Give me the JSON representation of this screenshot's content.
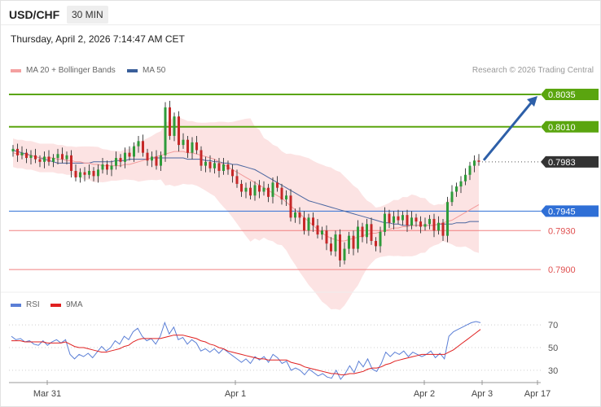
{
  "header": {
    "symbol": "USD/CHF",
    "timeframe": "30 MIN",
    "datetime": "Thursday, April 2, 2026 7:14:47 AM CET"
  },
  "legend": {
    "ma20_bb": {
      "label": "MA 20 + Bollinger Bands",
      "color": "#f4a0a0"
    },
    "ma50": {
      "label": "MA 50",
      "color": "#3a5f9a"
    },
    "credit": "Research © 2026 Trading Central"
  },
  "rsi_legend": {
    "rsi": {
      "label": "RSI",
      "color": "#5b7fd6"
    },
    "ma9": {
      "label": "9MA",
      "color": "#e02020"
    }
  },
  "chart_data": [
    {
      "type": "candlestick",
      "ylim": [
        0.7885,
        0.8045
      ],
      "price_labels": [
        {
          "value": "0.8035",
          "price": 0.8035,
          "kind": "resistance",
          "color": "#5aa50f"
        },
        {
          "value": "0.8010",
          "price": 0.801,
          "kind": "resistance",
          "color": "#5aa50f"
        },
        {
          "value": "0.7983",
          "price": 0.7983,
          "kind": "last",
          "color": "#333333"
        },
        {
          "value": "0.7945",
          "price": 0.7945,
          "kind": "pivot",
          "color": "#2f6fd6"
        },
        {
          "value": "0.7930",
          "price": 0.793,
          "kind": "support",
          "color": "#e05050"
        },
        {
          "value": "0.7900",
          "price": 0.79,
          "kind": "support",
          "color": "#e05050"
        }
      ],
      "x_ticks": [
        "Mar 31",
        "Apr 1",
        "Apr 2",
        "Apr 3",
        "Apr 17"
      ],
      "closes": [
        0.7993,
        0.7988,
        0.799,
        0.7986,
        0.7988,
        0.7985,
        0.7983,
        0.7987,
        0.7983,
        0.7986,
        0.7989,
        0.7985,
        0.7988,
        0.7976,
        0.7971,
        0.7975,
        0.7973,
        0.7976,
        0.7972,
        0.7977,
        0.7981,
        0.7977,
        0.798,
        0.7986,
        0.7983,
        0.799,
        0.7987,
        0.7995,
        0.7999,
        0.799,
        0.7984,
        0.7987,
        0.798,
        0.7988,
        0.8025,
        0.8003,
        0.8018,
        0.7996,
        0.8,
        0.799,
        0.7998,
        0.7992,
        0.798,
        0.7983,
        0.7978,
        0.7982,
        0.7976,
        0.7981,
        0.7977,
        0.7972,
        0.7966,
        0.796,
        0.7963,
        0.7957,
        0.7965,
        0.796,
        0.7963,
        0.7956,
        0.7967,
        0.7963,
        0.7954,
        0.7957,
        0.794,
        0.7944,
        0.794,
        0.793,
        0.794,
        0.7934,
        0.7927,
        0.793,
        0.792,
        0.7914,
        0.7927,
        0.7907,
        0.7916,
        0.7926,
        0.7916,
        0.7933,
        0.7925,
        0.7935,
        0.7922,
        0.7918,
        0.7929,
        0.7943,
        0.7936,
        0.7941,
        0.7938,
        0.7942,
        0.7934,
        0.794,
        0.7937,
        0.7933,
        0.7935,
        0.7939,
        0.793,
        0.7936,
        0.7926,
        0.7952,
        0.796,
        0.7964,
        0.7968,
        0.7973,
        0.798,
        0.7984,
        0.7983
      ],
      "ma20": [
        0.799,
        0.7989,
        0.7989,
        0.7988,
        0.7988,
        0.7987,
        0.7986,
        0.7986,
        0.7986,
        0.7986,
        0.7985,
        0.7985,
        0.7984,
        0.7984,
        0.7983,
        0.7983,
        0.7982,
        0.7982,
        0.7981,
        0.7981,
        0.798,
        0.798,
        0.798,
        0.798,
        0.798,
        0.7981,
        0.7981,
        0.7982,
        0.7983,
        0.7984,
        0.7985,
        0.7986,
        0.7987,
        0.7988,
        0.7989,
        0.799,
        0.7991,
        0.7991,
        0.7991,
        0.799,
        0.799,
        0.7989,
        0.7988,
        0.7987,
        0.7986,
        0.7985,
        0.7983,
        0.7981,
        0.7979,
        0.7977,
        0.7975,
        0.7973,
        0.7971,
        0.7969,
        0.7967,
        0.7965,
        0.7963,
        0.7961,
        0.7959,
        0.7957,
        0.7955,
        0.7952,
        0.7949,
        0.7946,
        0.7943,
        0.794,
        0.7937,
        0.7934,
        0.7931,
        0.7928,
        0.7926,
        0.7924,
        0.7923,
        0.7922,
        0.7922,
        0.7923,
        0.7924,
        0.7925,
        0.7926,
        0.7927,
        0.7928,
        0.7928,
        0.7929,
        0.793,
        0.7931,
        0.7932,
        0.7932,
        0.7933,
        0.7933,
        0.7934,
        0.7934,
        0.7934,
        0.7934,
        0.7934,
        0.7934,
        0.7935,
        0.7936,
        0.7937,
        0.7938,
        0.794,
        0.7942,
        0.7944,
        0.7946,
        0.7948,
        0.795
      ],
      "ma50": [
        0.7992,
        0.7991,
        0.799,
        0.7989,
        0.7988,
        0.7987,
        0.7986,
        0.7985,
        0.7984,
        0.7983,
        0.7982,
        0.7982,
        0.7982,
        0.7982,
        0.7982,
        0.7982,
        0.7982,
        0.7982,
        0.7983,
        0.7983,
        0.7983,
        0.7983,
        0.7983,
        0.7984,
        0.7984,
        0.7984,
        0.7985,
        0.7985,
        0.7985,
        0.7985,
        0.7985,
        0.7986,
        0.7986,
        0.7986,
        0.7986,
        0.7986,
        0.7986,
        0.7986,
        0.7986,
        0.7985,
        0.7985,
        0.7985,
        0.7985,
        0.7984,
        0.7984,
        0.7983,
        0.7983,
        0.7982,
        0.7982,
        0.7981,
        0.7981,
        0.798,
        0.7979,
        0.7978,
        0.7977,
        0.7975,
        0.7973,
        0.7971,
        0.7969,
        0.7967,
        0.7965,
        0.7963,
        0.7961,
        0.7959,
        0.7957,
        0.7955,
        0.7953,
        0.7952,
        0.7951,
        0.795,
        0.7949,
        0.7948,
        0.7947,
        0.7946,
        0.7945,
        0.7944,
        0.7943,
        0.7942,
        0.7941,
        0.794,
        0.7939,
        0.7938,
        0.7937,
        0.7936,
        0.7936,
        0.7935,
        0.7935,
        0.7934,
        0.7934,
        0.7934,
        0.7934,
        0.7934,
        0.7934,
        0.7934,
        0.7934,
        0.7935,
        0.7935,
        0.7935,
        0.7935,
        0.7936,
        0.7936,
        0.7936,
        0.7937,
        0.7937,
        0.7937
      ]
    },
    {
      "type": "line",
      "title": "RSI",
      "y_ticks": [
        "70",
        "50",
        "30"
      ],
      "ylim": [
        22,
        78
      ],
      "series": [
        {
          "name": "RSI",
          "values": [
            60,
            57,
            58,
            55,
            56,
            53,
            52,
            56,
            52,
            55,
            57,
            54,
            57,
            44,
            40,
            44,
            42,
            45,
            41,
            46,
            51,
            47,
            50,
            56,
            53,
            60,
            57,
            64,
            67,
            60,
            56,
            58,
            53,
            60,
            72,
            62,
            68,
            57,
            59,
            53,
            57,
            54,
            47,
            49,
            46,
            49,
            45,
            49,
            46,
            43,
            40,
            37,
            40,
            36,
            42,
            39,
            42,
            37,
            44,
            41,
            36,
            38,
            30,
            32,
            30,
            26,
            31,
            28,
            25,
            27,
            24,
            23,
            30,
            22,
            27,
            34,
            28,
            38,
            33,
            40,
            31,
            29,
            36,
            46,
            42,
            46,
            44,
            47,
            42,
            46,
            44,
            42,
            44,
            47,
            41,
            45,
            40,
            60,
            64,
            66,
            68,
            70,
            72,
            73,
            72
          ]
        },
        {
          "name": "9MA",
          "values": [
            56,
            56,
            56,
            55,
            55,
            55,
            55,
            55,
            54,
            54,
            54,
            54,
            55,
            53,
            51,
            50,
            50,
            49,
            48,
            47,
            46,
            46,
            47,
            48,
            49,
            51,
            52,
            55,
            57,
            58,
            58,
            58,
            58,
            58,
            59,
            60,
            61,
            61,
            61,
            60,
            59,
            58,
            56,
            55,
            53,
            52,
            50,
            49,
            47,
            46,
            45,
            44,
            43,
            42,
            41,
            40,
            40,
            39,
            39,
            39,
            39,
            39,
            37,
            36,
            35,
            33,
            32,
            31,
            30,
            29,
            28,
            27,
            27,
            26,
            26,
            27,
            27,
            28,
            29,
            31,
            32,
            32,
            33,
            35,
            36,
            38,
            39,
            40,
            41,
            42,
            43,
            44,
            44,
            44,
            44,
            44,
            44,
            46,
            48,
            51,
            54,
            57,
            60,
            63,
            66
          ]
        }
      ]
    }
  ]
}
